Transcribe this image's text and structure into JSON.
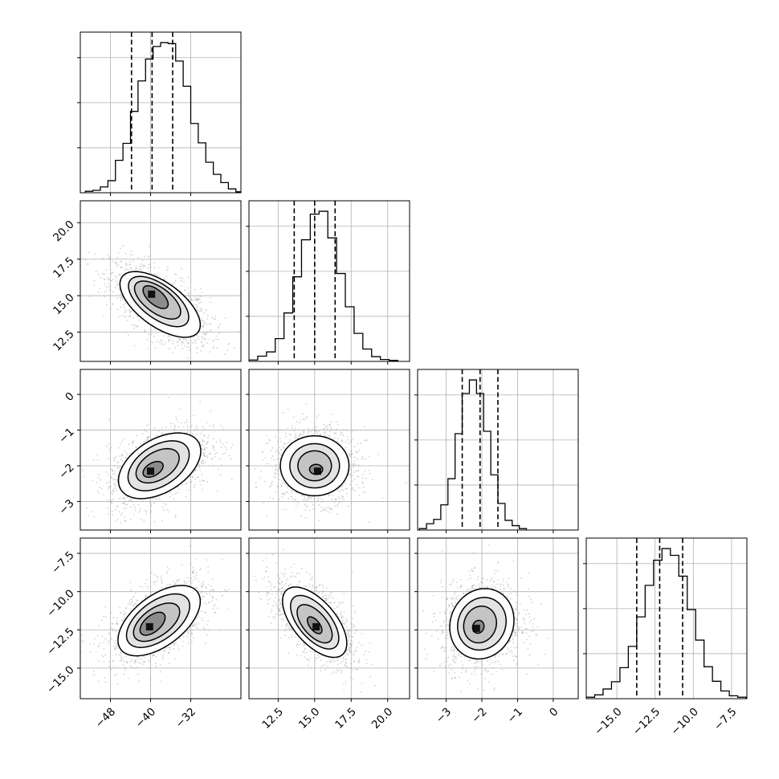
{
  "chart_data": {
    "type": "corner",
    "parameters": [
      {
        "range": [
          -54.0,
          -22.0
        ],
        "ticks": [
          -48,
          -40,
          -32
        ],
        "tick_labels": [
          "−48",
          "−40",
          "−32"
        ],
        "quantiles": [
          -43.8,
          -39.7,
          -35.6
        ],
        "hist_edges_start": -53.0,
        "hist_bin_width": 1.5,
        "hist_counts": [
          0.3,
          0.5,
          1.2,
          2.5,
          6.7,
          10.2,
          16.8,
          23.1,
          27.6,
          30.2,
          31.0,
          30.8,
          27.2,
          22.0,
          14.3,
          10.3,
          6.3,
          3.8,
          2.1,
          0.8,
          0.2
        ]
      },
      {
        "range": [
          10.5,
          21.5
        ],
        "ticks": [
          12.5,
          15.0,
          17.5,
          20.0
        ],
        "tick_labels": [
          "12.5",
          "15.0",
          "17.5",
          "20.0"
        ],
        "quantiles": [
          13.6,
          15.0,
          16.4
        ],
        "hist_edges_start": 10.5,
        "hist_bin_width": 0.6,
        "hist_counts": [
          0.3,
          1.1,
          2.0,
          4.8,
          10.2,
          17.8,
          25.6,
          31.0,
          31.6,
          26.0,
          18.5,
          11.5,
          5.9,
          2.6,
          1.0,
          0.4,
          0.2
        ]
      },
      {
        "range": [
          -3.8,
          0.7
        ],
        "ticks": [
          -3,
          -2,
          -1,
          0
        ],
        "tick_labels": [
          "−3",
          "−2",
          "−1",
          "0"
        ],
        "quantiles": [
          -2.55,
          -2.05,
          -1.55
        ],
        "hist_edges_start": -3.75,
        "hist_bin_width": 0.2,
        "hist_counts": [
          0.3,
          1.3,
          2.2,
          5.2,
          10.6,
          19.9,
          28.2,
          31.0,
          28.2,
          20.4,
          11.4,
          5.5,
          2.0,
          0.9,
          0.3
        ]
      },
      {
        "range": [
          -17.0,
          -6.5
        ],
        "ticks": [
          -15.0,
          -12.5,
          -10.0,
          -7.5
        ],
        "tick_labels": [
          "−15.0",
          "−12.5",
          "−10.0",
          "−7.5"
        ],
        "quantiles": [
          -13.7,
          -12.2,
          -10.7
        ],
        "hist_edges_start": -17.0,
        "hist_bin_width": 0.55,
        "hist_counts": [
          0.3,
          0.8,
          2.0,
          3.5,
          6.4,
          10.8,
          16.9,
          23.4,
          28.6,
          31.0,
          29.6,
          25.3,
          18.4,
          12.1,
          6.6,
          3.6,
          1.6,
          0.6,
          0.3
        ]
      }
    ],
    "pairs": [
      {
        "x_param": 0,
        "y_param": 1,
        "peak": [
          -39.8,
          15.1
        ],
        "contours": [
          {
            "center": [
              -39.0,
              14.9
            ],
            "sigma_x": 2.5,
            "sigma_y": 0.78,
            "corr": -0.62
          },
          {
            "center": [
              -38.6,
              14.7
            ],
            "sigma_x": 4.6,
            "sigma_y": 1.3,
            "corr": -0.62
          },
          {
            "center": [
              -38.4,
              14.6
            ],
            "sigma_x": 6.0,
            "sigma_y": 1.72,
            "corr": -0.62
          },
          {
            "center": [
              -38.1,
              14.4
            ],
            "sigma_x": 8.0,
            "sigma_y": 2.25,
            "corr": -0.62
          }
        ]
      },
      {
        "x_param": 0,
        "y_param": 2,
        "peak": [
          -40.0,
          -2.15
        ],
        "contours": [
          {
            "center": [
              -39.5,
              -2.1
            ],
            "sigma_x": 2.0,
            "sigma_y": 0.22,
            "corr": 0.45
          },
          {
            "center": [
              -38.6,
              -2.0
            ],
            "sigma_x": 4.3,
            "sigma_y": 0.48,
            "corr": 0.45
          },
          {
            "center": [
              -38.4,
              -2.0
            ],
            "sigma_x": 6.1,
            "sigma_y": 0.7,
            "corr": 0.45
          },
          {
            "center": [
              -38.2,
              -2.0
            ],
            "sigma_x": 8.2,
            "sigma_y": 0.92,
            "corr": 0.45
          }
        ]
      },
      {
        "x_param": 1,
        "y_param": 2,
        "peak": [
          15.2,
          -2.15
        ],
        "contours": [
          {
            "center": [
              15.1,
              -2.1
            ],
            "sigma_x": 0.45,
            "sigma_y": 0.14,
            "corr": 0.0
          },
          {
            "center": [
              15.0,
              -2.0
            ],
            "sigma_x": 1.15,
            "sigma_y": 0.42,
            "corr": 0.0
          },
          {
            "center": [
              15.0,
              -2.0
            ],
            "sigma_x": 1.7,
            "sigma_y": 0.62,
            "corr": 0.0
          },
          {
            "center": [
              15.0,
              -2.0
            ],
            "sigma_x": 2.35,
            "sigma_y": 0.84,
            "corr": 0.0
          }
        ]
      },
      {
        "x_param": 0,
        "y_param": 3,
        "peak": [
          -40.2,
          -12.3
        ],
        "contours": [
          {
            "center": [
              -39.6,
              -12.1
            ],
            "sigma_x": 2.5,
            "sigma_y": 0.75,
            "corr": 0.55
          },
          {
            "center": [
              -38.8,
              -12.0
            ],
            "sigma_x": 4.6,
            "sigma_y": 1.25,
            "corr": 0.55
          },
          {
            "center": [
              -38.5,
              -11.9
            ],
            "sigma_x": 6.3,
            "sigma_y": 1.75,
            "corr": 0.55
          },
          {
            "center": [
              -38.3,
              -11.9
            ],
            "sigma_x": 8.2,
            "sigma_y": 2.3,
            "corr": 0.55
          }
        ]
      },
      {
        "x_param": 1,
        "y_param": 3,
        "peak": [
          15.1,
          -12.3
        ],
        "contours": [
          {
            "center": [
              15.0,
              -12.2
            ],
            "sigma_x": 0.5,
            "sigma_y": 0.55,
            "corr": -0.6
          },
          {
            "center": [
              15.0,
              -12.1
            ],
            "sigma_x": 1.2,
            "sigma_y": 1.25,
            "corr": -0.6
          },
          {
            "center": [
              15.0,
              -12.0
            ],
            "sigma_x": 1.65,
            "sigma_y": 1.75,
            "corr": -0.6
          },
          {
            "center": [
              15.0,
              -12.0
            ],
            "sigma_x": 2.2,
            "sigma_y": 2.3,
            "corr": -0.6
          }
        ]
      },
      {
        "x_param": 2,
        "y_param": 3,
        "peak": [
          -2.15,
          -12.4
        ],
        "contours": [
          {
            "center": [
              -2.1,
              -12.3
            ],
            "sigma_x": 0.16,
            "sigma_y": 0.42,
            "corr": 0.1
          },
          {
            "center": [
              -2.05,
              -12.15
            ],
            "sigma_x": 0.46,
            "sigma_y": 1.2,
            "corr": 0.1
          },
          {
            "center": [
              -2.0,
              -12.1
            ],
            "sigma_x": 0.68,
            "sigma_y": 1.72,
            "corr": 0.1
          },
          {
            "center": [
              -2.0,
              -12.1
            ],
            "sigma_x": 0.9,
            "sigma_y": 2.3,
            "corr": 0.1
          }
        ]
      }
    ],
    "grid": true,
    "colors": {
      "scatter": "#9e9e9e",
      "line": "#000000",
      "grid": "#b0b0b0"
    }
  }
}
